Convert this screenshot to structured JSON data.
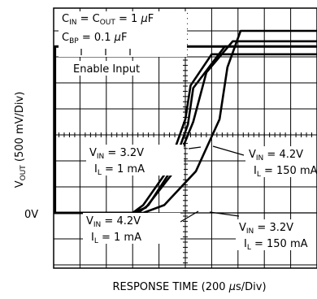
{
  "chart_data": {
    "type": "line",
    "title": "",
    "xlabel": "RESPONSE TIME (200 µs/Div)",
    "xlabel_parts": {
      "main": "RESPONSE TIME (200 ",
      "mu": "µ",
      "rest": "s/Div)"
    },
    "ylabel": "VOUT (500 mV/Div)",
    "ylabel_parts": {
      "v": "V",
      "sub": "OUT",
      "rest": " (500 mV/Div)"
    },
    "y_zero_label": "0V",
    "x_range_div": [
      0,
      10
    ],
    "y_range_div": [
      0,
      8
    ],
    "grid": true,
    "conditions": {
      "cin_cout": {
        "c": "C",
        "sub_in": "IN",
        "eq": " = C",
        "sub_out": "OUT",
        "val": " = 1 ",
        "mu": "µ",
        "unit": "F"
      },
      "cbp": {
        "c": "C",
        "sub": "BP",
        "val": " = 0.1 ",
        "mu": "µ",
        "unit": "F"
      }
    },
    "enable_label": "Enable Input",
    "curve_labels": [
      {
        "id": "a",
        "vin": "V",
        "vin_sub": "IN",
        "vin_val": " = 3.2V",
        "il": "I",
        "il_sub": "L",
        "il_val": " = 1 mA"
      },
      {
        "id": "b",
        "vin": "V",
        "vin_sub": "IN",
        "vin_val": " = 4.2V",
        "il": "I",
        "il_sub": "L",
        "il_val": " = 150 mA"
      },
      {
        "id": "c",
        "vin": "V",
        "vin_sub": "IN",
        "vin_val": " = 4.2V",
        "il": "I",
        "il_sub": "L",
        "il_val": " = 1 mA"
      },
      {
        "id": "d",
        "vin": "V",
        "vin_sub": "IN",
        "vin_val": " = 3.2V",
        "il": "I",
        "il_sub": "L",
        "il_val": " = 150 mA"
      }
    ],
    "series": [
      {
        "id": "enable",
        "x": [
          0,
          0.05,
          0.05,
          10
        ],
        "y": [
          0,
          0,
          6.4,
          6.4
        ]
      },
      {
        "id": "a",
        "x": [
          0,
          3.0,
          3.4,
          4.3,
          5.0,
          5.2,
          5.2,
          6.0,
          10
        ],
        "y": [
          0,
          0,
          0.3,
          1.6,
          3.6,
          4.9,
          4.9,
          6.1,
          6.1
        ]
      },
      {
        "id": "b",
        "x": [
          0,
          3.0,
          3.5,
          4.5,
          5.3,
          5.8,
          6.8,
          7.5,
          10
        ],
        "y": [
          0,
          0,
          0.2,
          1.5,
          3.5,
          5.4,
          6.6,
          6.6,
          6.6
        ]
      },
      {
        "id": "c",
        "x": [
          0,
          3.2,
          3.6,
          4.5,
          5.1,
          5.3,
          5.3,
          6.5,
          10
        ],
        "y": [
          0,
          0,
          0.3,
          1.7,
          3.4,
          4.8,
          4.8,
          6.4,
          6.4
        ]
      },
      {
        "id": "d",
        "x": [
          0,
          3.4,
          4.2,
          5.4,
          6.3,
          6.6,
          7.1,
          8.0,
          10
        ],
        "y": [
          0,
          0,
          0.3,
          1.6,
          3.6,
          5.6,
          7.0,
          7.0,
          7.0
        ]
      }
    ]
  }
}
